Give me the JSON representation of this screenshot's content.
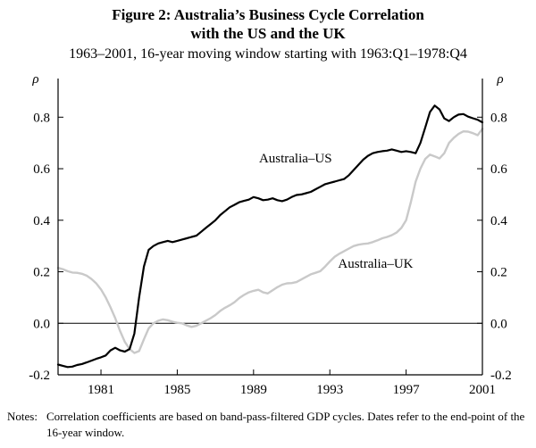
{
  "title": {
    "line1": "Figure 2: Australia’s Business Cycle Correlation",
    "line2": "with the US and the UK"
  },
  "subtitle": "1963–2001, 16-year moving window starting with 1963:Q1–1978:Q4",
  "notes": {
    "label": "Notes:",
    "text": "Correlation coefficients are based on band-pass-filtered GDP cycles. Dates refer to the end-point of the 16-year window."
  },
  "chart_data": {
    "type": "line",
    "title": "Figure 2: Australia’s Business Cycle Correlation with the US and the UK",
    "ylabel": "ρ",
    "xlim": [
      1978.75,
      2001
    ],
    "ylim": [
      -0.2,
      0.95
    ],
    "xticks": [
      1981,
      1985,
      1989,
      1993,
      1997,
      2001
    ],
    "yticks": [
      -0.2,
      0,
      0.2,
      0.4,
      0.6,
      0.8
    ],
    "zero_line": true,
    "grid": false,
    "legend": "inline-labels",
    "series": [
      {
        "id": "aus-us",
        "name": "Australia–US",
        "color": "#000000",
        "width": 2.2,
        "label_at": [
          1991.2,
          0.625
        ],
        "points": [
          [
            1978.75,
            -0.16
          ],
          [
            1979,
            -0.165
          ],
          [
            1979.25,
            -0.17
          ],
          [
            1979.5,
            -0.168
          ],
          [
            1979.75,
            -0.162
          ],
          [
            1980,
            -0.158
          ],
          [
            1980.25,
            -0.152
          ],
          [
            1980.5,
            -0.145
          ],
          [
            1980.75,
            -0.138
          ],
          [
            1981,
            -0.132
          ],
          [
            1981.25,
            -0.125
          ],
          [
            1981.5,
            -0.105
          ],
          [
            1981.75,
            -0.095
          ],
          [
            1982,
            -0.105
          ],
          [
            1982.25,
            -0.11
          ],
          [
            1982.5,
            -0.1
          ],
          [
            1982.75,
            -0.04
          ],
          [
            1983,
            0.1
          ],
          [
            1983.25,
            0.22
          ],
          [
            1983.5,
            0.285
          ],
          [
            1983.75,
            0.3
          ],
          [
            1984,
            0.31
          ],
          [
            1984.25,
            0.315
          ],
          [
            1984.5,
            0.32
          ],
          [
            1984.75,
            0.315
          ],
          [
            1985,
            0.32
          ],
          [
            1985.25,
            0.325
          ],
          [
            1985.5,
            0.33
          ],
          [
            1985.75,
            0.335
          ],
          [
            1986,
            0.34
          ],
          [
            1986.25,
            0.355
          ],
          [
            1986.5,
            0.37
          ],
          [
            1986.75,
            0.385
          ],
          [
            1987,
            0.4
          ],
          [
            1987.25,
            0.42
          ],
          [
            1987.5,
            0.435
          ],
          [
            1987.75,
            0.45
          ],
          [
            1988,
            0.46
          ],
          [
            1988.25,
            0.47
          ],
          [
            1988.5,
            0.475
          ],
          [
            1988.75,
            0.48
          ],
          [
            1989,
            0.49
          ],
          [
            1989.25,
            0.485
          ],
          [
            1989.5,
            0.478
          ],
          [
            1989.75,
            0.48
          ],
          [
            1990,
            0.485
          ],
          [
            1990.25,
            0.478
          ],
          [
            1990.5,
            0.474
          ],
          [
            1990.75,
            0.48
          ],
          [
            1991,
            0.49
          ],
          [
            1991.25,
            0.498
          ],
          [
            1991.5,
            0.5
          ],
          [
            1991.75,
            0.505
          ],
          [
            1992,
            0.51
          ],
          [
            1992.25,
            0.52
          ],
          [
            1992.5,
            0.53
          ],
          [
            1992.75,
            0.54
          ],
          [
            1993,
            0.545
          ],
          [
            1993.25,
            0.55
          ],
          [
            1993.5,
            0.555
          ],
          [
            1993.75,
            0.56
          ],
          [
            1994,
            0.575
          ],
          [
            1994.25,
            0.595
          ],
          [
            1994.5,
            0.615
          ],
          [
            1994.75,
            0.635
          ],
          [
            1995,
            0.65
          ],
          [
            1995.25,
            0.66
          ],
          [
            1995.5,
            0.665
          ],
          [
            1995.75,
            0.668
          ],
          [
            1996,
            0.67
          ],
          [
            1996.25,
            0.675
          ],
          [
            1996.5,
            0.67
          ],
          [
            1996.75,
            0.665
          ],
          [
            1997,
            0.668
          ],
          [
            1997.25,
            0.665
          ],
          [
            1997.5,
            0.66
          ],
          [
            1997.75,
            0.7
          ],
          [
            1998,
            0.76
          ],
          [
            1998.25,
            0.82
          ],
          [
            1998.5,
            0.845
          ],
          [
            1998.75,
            0.83
          ],
          [
            1999,
            0.795
          ],
          [
            1999.25,
            0.785
          ],
          [
            1999.5,
            0.8
          ],
          [
            1999.75,
            0.81
          ],
          [
            2000,
            0.812
          ],
          [
            2000.25,
            0.802
          ],
          [
            2000.5,
            0.796
          ],
          [
            2000.75,
            0.79
          ],
          [
            2001,
            0.78
          ]
        ]
      },
      {
        "id": "aus-uk",
        "name": "Australia–UK",
        "color": "#c9c9c9",
        "width": 2.4,
        "label_at": [
          1995.4,
          0.215
        ],
        "points": [
          [
            1978.75,
            0.215
          ],
          [
            1979,
            0.21
          ],
          [
            1979.25,
            0.202
          ],
          [
            1979.5,
            0.197
          ],
          [
            1979.75,
            0.196
          ],
          [
            1980,
            0.192
          ],
          [
            1980.25,
            0.185
          ],
          [
            1980.5,
            0.172
          ],
          [
            1980.75,
            0.155
          ],
          [
            1981,
            0.132
          ],
          [
            1981.25,
            0.1
          ],
          [
            1981.5,
            0.062
          ],
          [
            1981.75,
            0.02
          ],
          [
            1982,
            -0.03
          ],
          [
            1982.25,
            -0.072
          ],
          [
            1982.5,
            -0.1
          ],
          [
            1982.75,
            -0.115
          ],
          [
            1983,
            -0.108
          ],
          [
            1983.25,
            -0.062
          ],
          [
            1983.5,
            -0.02
          ],
          [
            1983.75,
            0
          ],
          [
            1984,
            0.01
          ],
          [
            1984.25,
            0.015
          ],
          [
            1984.5,
            0.012
          ],
          [
            1984.75,
            0.006
          ],
          [
            1985,
            0.002
          ],
          [
            1985.25,
            0
          ],
          [
            1985.5,
            -0.008
          ],
          [
            1985.75,
            -0.014
          ],
          [
            1986,
            -0.01
          ],
          [
            1986.25,
            0
          ],
          [
            1986.5,
            0.01
          ],
          [
            1986.75,
            0.02
          ],
          [
            1987,
            0.032
          ],
          [
            1987.25,
            0.048
          ],
          [
            1987.5,
            0.06
          ],
          [
            1987.75,
            0.07
          ],
          [
            1988,
            0.082
          ],
          [
            1988.25,
            0.098
          ],
          [
            1988.5,
            0.11
          ],
          [
            1988.75,
            0.12
          ],
          [
            1989,
            0.126
          ],
          [
            1989.25,
            0.13
          ],
          [
            1989.5,
            0.12
          ],
          [
            1989.75,
            0.116
          ],
          [
            1990,
            0.128
          ],
          [
            1990.25,
            0.14
          ],
          [
            1990.5,
            0.15
          ],
          [
            1990.75,
            0.155
          ],
          [
            1991,
            0.156
          ],
          [
            1991.25,
            0.16
          ],
          [
            1991.5,
            0.17
          ],
          [
            1991.75,
            0.18
          ],
          [
            1992,
            0.19
          ],
          [
            1992.25,
            0.196
          ],
          [
            1992.5,
            0.202
          ],
          [
            1992.75,
            0.22
          ],
          [
            1993,
            0.24
          ],
          [
            1993.25,
            0.258
          ],
          [
            1993.5,
            0.27
          ],
          [
            1993.75,
            0.28
          ],
          [
            1994,
            0.29
          ],
          [
            1994.25,
            0.3
          ],
          [
            1994.5,
            0.305
          ],
          [
            1994.75,
            0.308
          ],
          [
            1995,
            0.31
          ],
          [
            1995.25,
            0.315
          ],
          [
            1995.5,
            0.322
          ],
          [
            1995.75,
            0.33
          ],
          [
            1996,
            0.335
          ],
          [
            1996.25,
            0.342
          ],
          [
            1996.5,
            0.352
          ],
          [
            1996.75,
            0.37
          ],
          [
            1997,
            0.4
          ],
          [
            1997.25,
            0.47
          ],
          [
            1997.5,
            0.55
          ],
          [
            1997.75,
            0.6
          ],
          [
            1998,
            0.638
          ],
          [
            1998.25,
            0.655
          ],
          [
            1998.5,
            0.648
          ],
          [
            1998.75,
            0.64
          ],
          [
            1999,
            0.66
          ],
          [
            1999.25,
            0.7
          ],
          [
            1999.5,
            0.72
          ],
          [
            1999.75,
            0.735
          ],
          [
            2000,
            0.745
          ],
          [
            2000.25,
            0.744
          ],
          [
            2000.5,
            0.738
          ],
          [
            2000.75,
            0.73
          ],
          [
            2001,
            0.755
          ]
        ]
      }
    ]
  }
}
